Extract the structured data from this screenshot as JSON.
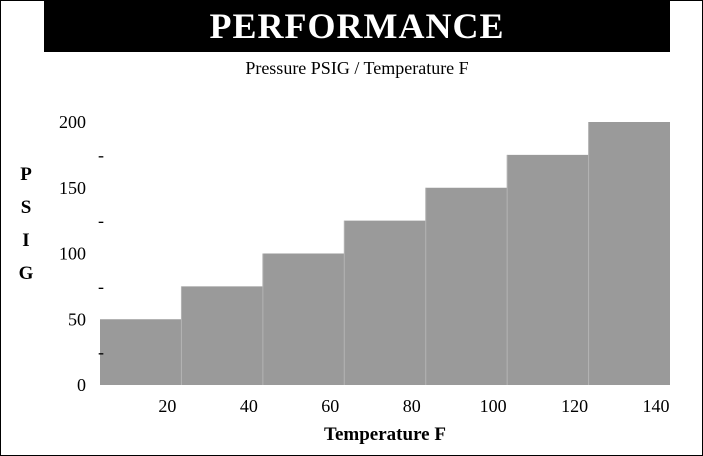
{
  "banner": {
    "title": "PERFORMANCE"
  },
  "chart_data": {
    "type": "bar",
    "title": "PERFORMANCE",
    "subtitle": "Pressure PSIG / Temperature F",
    "ylabel": "PSIG",
    "xlabel": "Temperature F",
    "x_ticks": [
      "20",
      "40",
      "60",
      "80",
      "100",
      "120",
      "140"
    ],
    "y_ticks": [
      "0",
      "50",
      "100",
      "150",
      "200"
    ],
    "y_minor_ticks": [
      "-",
      "-",
      "-",
      "-"
    ],
    "ylim": [
      0,
      200
    ],
    "bars": [
      {
        "x_from": 0,
        "x_to": 20,
        "value": 50
      },
      {
        "x_from": 20,
        "x_to": 40,
        "value": 75
      },
      {
        "x_from": 40,
        "x_to": 60,
        "value": 100
      },
      {
        "x_from": 60,
        "x_to": 80,
        "value": 125
      },
      {
        "x_from": 80,
        "x_to": 100,
        "value": 150
      },
      {
        "x_from": 100,
        "x_to": 120,
        "value": 175
      },
      {
        "x_from": 120,
        "x_to": 140,
        "value": 200
      }
    ],
    "bar_color": "#9a9a9a",
    "grid": false
  }
}
